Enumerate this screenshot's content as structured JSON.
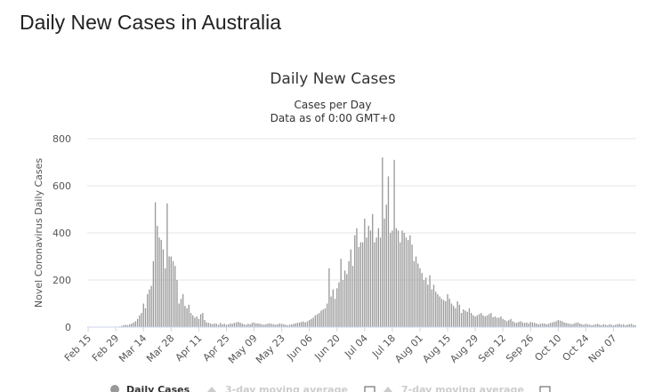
{
  "page": {
    "title": "Daily New Cases in Australia"
  },
  "chart_data": {
    "type": "bar",
    "title": "Daily New Cases",
    "subtitle": "Cases per Day",
    "subtitle2": "Data as of 0:00 GMT+0",
    "ylabel": "Novel Coronavirus Daily Cases",
    "xlabel": "",
    "ylim": [
      0,
      800
    ],
    "yticks": [
      0,
      200,
      400,
      600,
      800
    ],
    "grid": true,
    "bar_color": "#999999",
    "start_date": "2020-02-15",
    "x_tick_labels": [
      "Feb 15",
      "Feb 29",
      "Mar 14",
      "Mar 28",
      "Apr 11",
      "Apr 25",
      "May 09",
      "May 23",
      "Jun 06",
      "Jun 20",
      "Jul 04",
      "Jul 18",
      "Aug 01",
      "Aug 15",
      "Aug 29",
      "Sep 12",
      "Sep 26",
      "Oct 10",
      "Oct 24",
      "Nov 07"
    ],
    "series": [
      {
        "name": "Daily Cases",
        "values": [
          0,
          0,
          0,
          0,
          0,
          0,
          0,
          0,
          0,
          0,
          0,
          0,
          0,
          0,
          1,
          2,
          3,
          5,
          8,
          10,
          8,
          12,
          15,
          20,
          25,
          35,
          50,
          60,
          100,
          80,
          140,
          160,
          175,
          280,
          530,
          430,
          380,
          370,
          330,
          250,
          525,
          300,
          300,
          280,
          260,
          200,
          100,
          120,
          140,
          90,
          80,
          95,
          60,
          50,
          40,
          45,
          35,
          55,
          60,
          30,
          20,
          18,
          15,
          12,
          16,
          14,
          10,
          18,
          12,
          14,
          10,
          12,
          15,
          14,
          18,
          20,
          22,
          19,
          15,
          12,
          10,
          14,
          12,
          18,
          20,
          15,
          16,
          14,
          12,
          10,
          12,
          14,
          16,
          14,
          12,
          10,
          12,
          16,
          14,
          12,
          10,
          8,
          10,
          12,
          14,
          16,
          18,
          20,
          22,
          24,
          20,
          25,
          30,
          35,
          40,
          50,
          55,
          60,
          70,
          75,
          80,
          100,
          250,
          130,
          160,
          120,
          165,
          190,
          290,
          200,
          240,
          225,
          280,
          330,
          260,
          390,
          420,
          340,
          360,
          360,
          460,
          380,
          430,
          410,
          480,
          360,
          380,
          420,
          380,
          720,
          460,
          520,
          640,
          400,
          410,
          710,
          420,
          410,
          360,
          410,
          400,
          380,
          370,
          390,
          350,
          280,
          300,
          270,
          250,
          230,
          200,
          210,
          180,
          220,
          160,
          180,
          150,
          140,
          130,
          120,
          115,
          110,
          140,
          120,
          100,
          90,
          80,
          110,
          95,
          60,
          75,
          70,
          65,
          80,
          60,
          50,
          45,
          50,
          55,
          60,
          50,
          45,
          50,
          55,
          60,
          42,
          45,
          40,
          40,
          45,
          35,
          30,
          25,
          30,
          35,
          25,
          20,
          18,
          22,
          25,
          20,
          18,
          20,
          15,
          22,
          20,
          18,
          15,
          12,
          14,
          16,
          15,
          12,
          14,
          18,
          20,
          22,
          25,
          30,
          28,
          25,
          20,
          18,
          16,
          14,
          12,
          15,
          18,
          20,
          15,
          12,
          10,
          14,
          12,
          10,
          8,
          10,
          12,
          14,
          10,
          8,
          12,
          10,
          8,
          12,
          10,
          8,
          10,
          12,
          14,
          10,
          12,
          8,
          10,
          12,
          14,
          10,
          8
        ]
      }
    ],
    "legend": [
      {
        "label": "Daily Cases",
        "active": true,
        "color": "#999999"
      },
      {
        "label": "3-day moving average",
        "active": false,
        "color": "#cccccc"
      },
      {
        "label": "7-day moving average",
        "active": false,
        "color": "#cccccc"
      }
    ]
  }
}
